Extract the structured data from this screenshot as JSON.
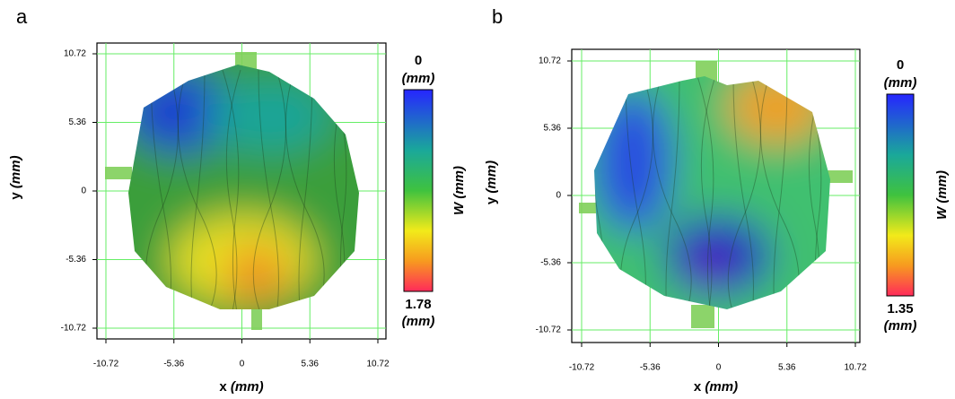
{
  "panels": [
    {
      "label": "a",
      "x_label": "x",
      "x_unit": "(mm)",
      "y_label": "y",
      "y_unit": "(mm)",
      "xticks": [
        -10.72,
        -5.36,
        0,
        5.36,
        10.72
      ],
      "yticks": [
        10.72,
        5.36,
        0,
        -5.36,
        -10.72
      ],
      "colorbar": {
        "top": 0,
        "top_unit": "(mm)",
        "bottom": 1.78,
        "bottom_unit": "(mm)",
        "label": "W",
        "label_unit": "(mm)"
      }
    },
    {
      "label": "b",
      "x_label": "x",
      "x_unit": "(mm)",
      "y_label": "y",
      "y_unit": "(mm)",
      "xticks": [
        -10.72,
        -5.36,
        0,
        5.36,
        10.72
      ],
      "yticks": [
        10.72,
        5.36,
        0,
        -5.36,
        -10.72
      ],
      "colorbar": {
        "top": 0,
        "top_unit": "(mm)",
        "bottom": 1.35,
        "bottom_unit": "(mm)",
        "label": "W",
        "label_unit": "(mm)"
      }
    }
  ]
}
